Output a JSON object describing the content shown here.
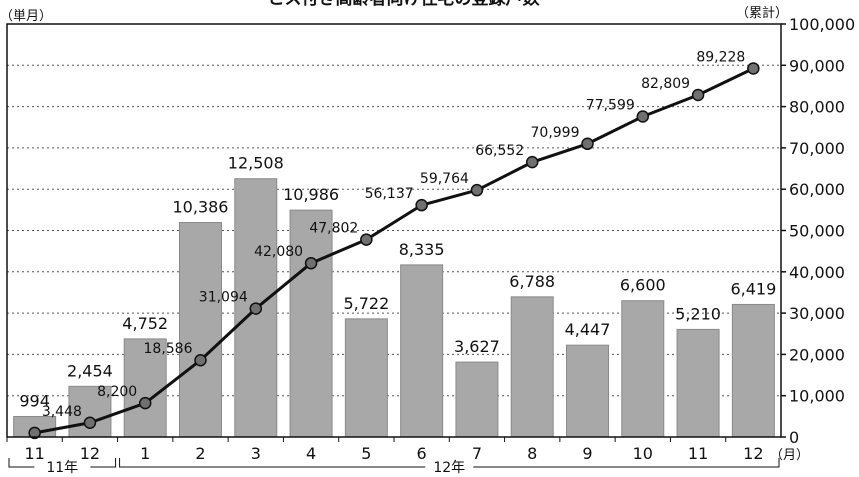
{
  "chart_data": {
    "type": "bar+line",
    "title": "ーとス付き高齢者向け住宅の登録戸数",
    "left_unit_label": "（単月）",
    "right_unit_label": "（累計）",
    "month_unit_label": "（月）",
    "categories": [
      "11",
      "12",
      "1",
      "2",
      "3",
      "4",
      "5",
      "6",
      "7",
      "8",
      "9",
      "10",
      "11",
      "12"
    ],
    "year_groups": [
      {
        "label": "11年",
        "from": "11",
        "to": "12"
      },
      {
        "label": "12年",
        "from": "1",
        "to": "12"
      }
    ],
    "series": [
      {
        "type": "bar",
        "axis": "right",
        "values": [
          994,
          2454,
          4752,
          10386,
          12508,
          10986,
          5722,
          8335,
          3627,
          6788,
          4447,
          6600,
          5210,
          6419
        ],
        "labels": [
          "994",
          "2,454",
          "4,752",
          "10,386",
          "12,508",
          "10,986",
          "5,722",
          "8,335",
          "3,627",
          "6,788",
          "4,447",
          "6,600",
          "5,210",
          "6,419"
        ]
      },
      {
        "type": "line",
        "axis": "right",
        "values": [
          994,
          3448,
          8200,
          18586,
          31094,
          42080,
          47802,
          56137,
          59764,
          66552,
          70999,
          77599,
          82809,
          89228
        ],
        "labels": [
          "",
          "3,448",
          "8,200",
          "18,586",
          "31,094",
          "42,080",
          "47,802",
          "56,137",
          "59,764",
          "66,552",
          "70,999",
          "77,599",
          "82,809",
          "89,228"
        ]
      }
    ],
    "bar_scale_max": 20000,
    "yaxis_right": {
      "ticks": [
        "0",
        "10,000",
        "20,000",
        "30,000",
        "40,000",
        "50,000",
        "60,000",
        "70,000",
        "80,000",
        "90,000",
        "100,000"
      ],
      "min": 0,
      "max": 100000
    },
    "grid": "horizontal dotted",
    "colors": {
      "bar": "#a8a8a8",
      "bar_edge": "#8a8a8a",
      "line": "#111111",
      "marker": "#707070"
    }
  }
}
